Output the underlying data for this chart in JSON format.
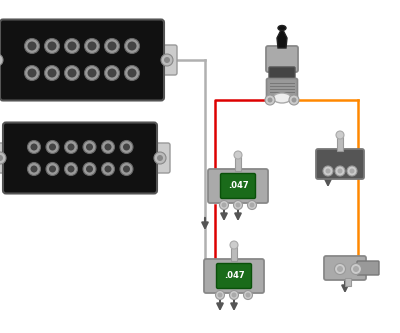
{
  "bg": "#ffffff",
  "wire_red": "#dd0000",
  "wire_orange": "#ff8800",
  "wire_gray": "#b0b0b0",
  "cap_green": "#1a6b1a",
  "cap_text": ".047",
  "metal_light": "#cccccc",
  "metal_mid": "#aaaaaa",
  "metal_dark": "#888888",
  "metal_darker": "#666666",
  "metal_black": "#333333",
  "ground_color": "#555555",
  "pickup_bg": "#111111",
  "pickup_pole_outer": "#999999",
  "pickup_pole_inner": "#555555",
  "pickup_edge": "#555555",
  "pickup_tab": "#cccccc"
}
